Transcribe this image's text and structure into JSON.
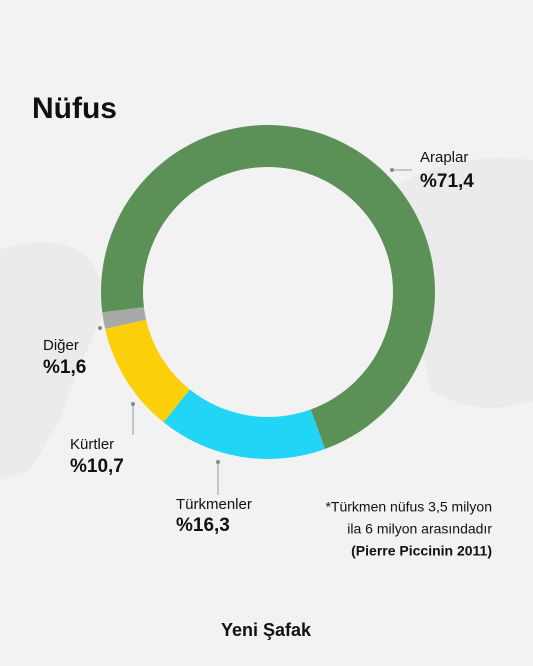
{
  "chart_data": {
    "type": "donut",
    "title": "Nüfus",
    "categories": [
      "Araplar",
      "Türkmenler",
      "Kürtler",
      "Diğer"
    ],
    "values": [
      71.4,
      16.3,
      10.7,
      1.6
    ],
    "value_labels": [
      "%71,4",
      "%16,3",
      "%10,7",
      "%1,6"
    ],
    "colors": [
      "#5b9157",
      "#22d4f6",
      "#fccf0b",
      "#a8a8a8"
    ],
    "note": [
      "*Türkmen nüfus 3,5 milyon",
      "ila 6 milyon arasındadır",
      "(Pierre Piccinin 2011)"
    ],
    "logo": "Yeni Şafak"
  }
}
